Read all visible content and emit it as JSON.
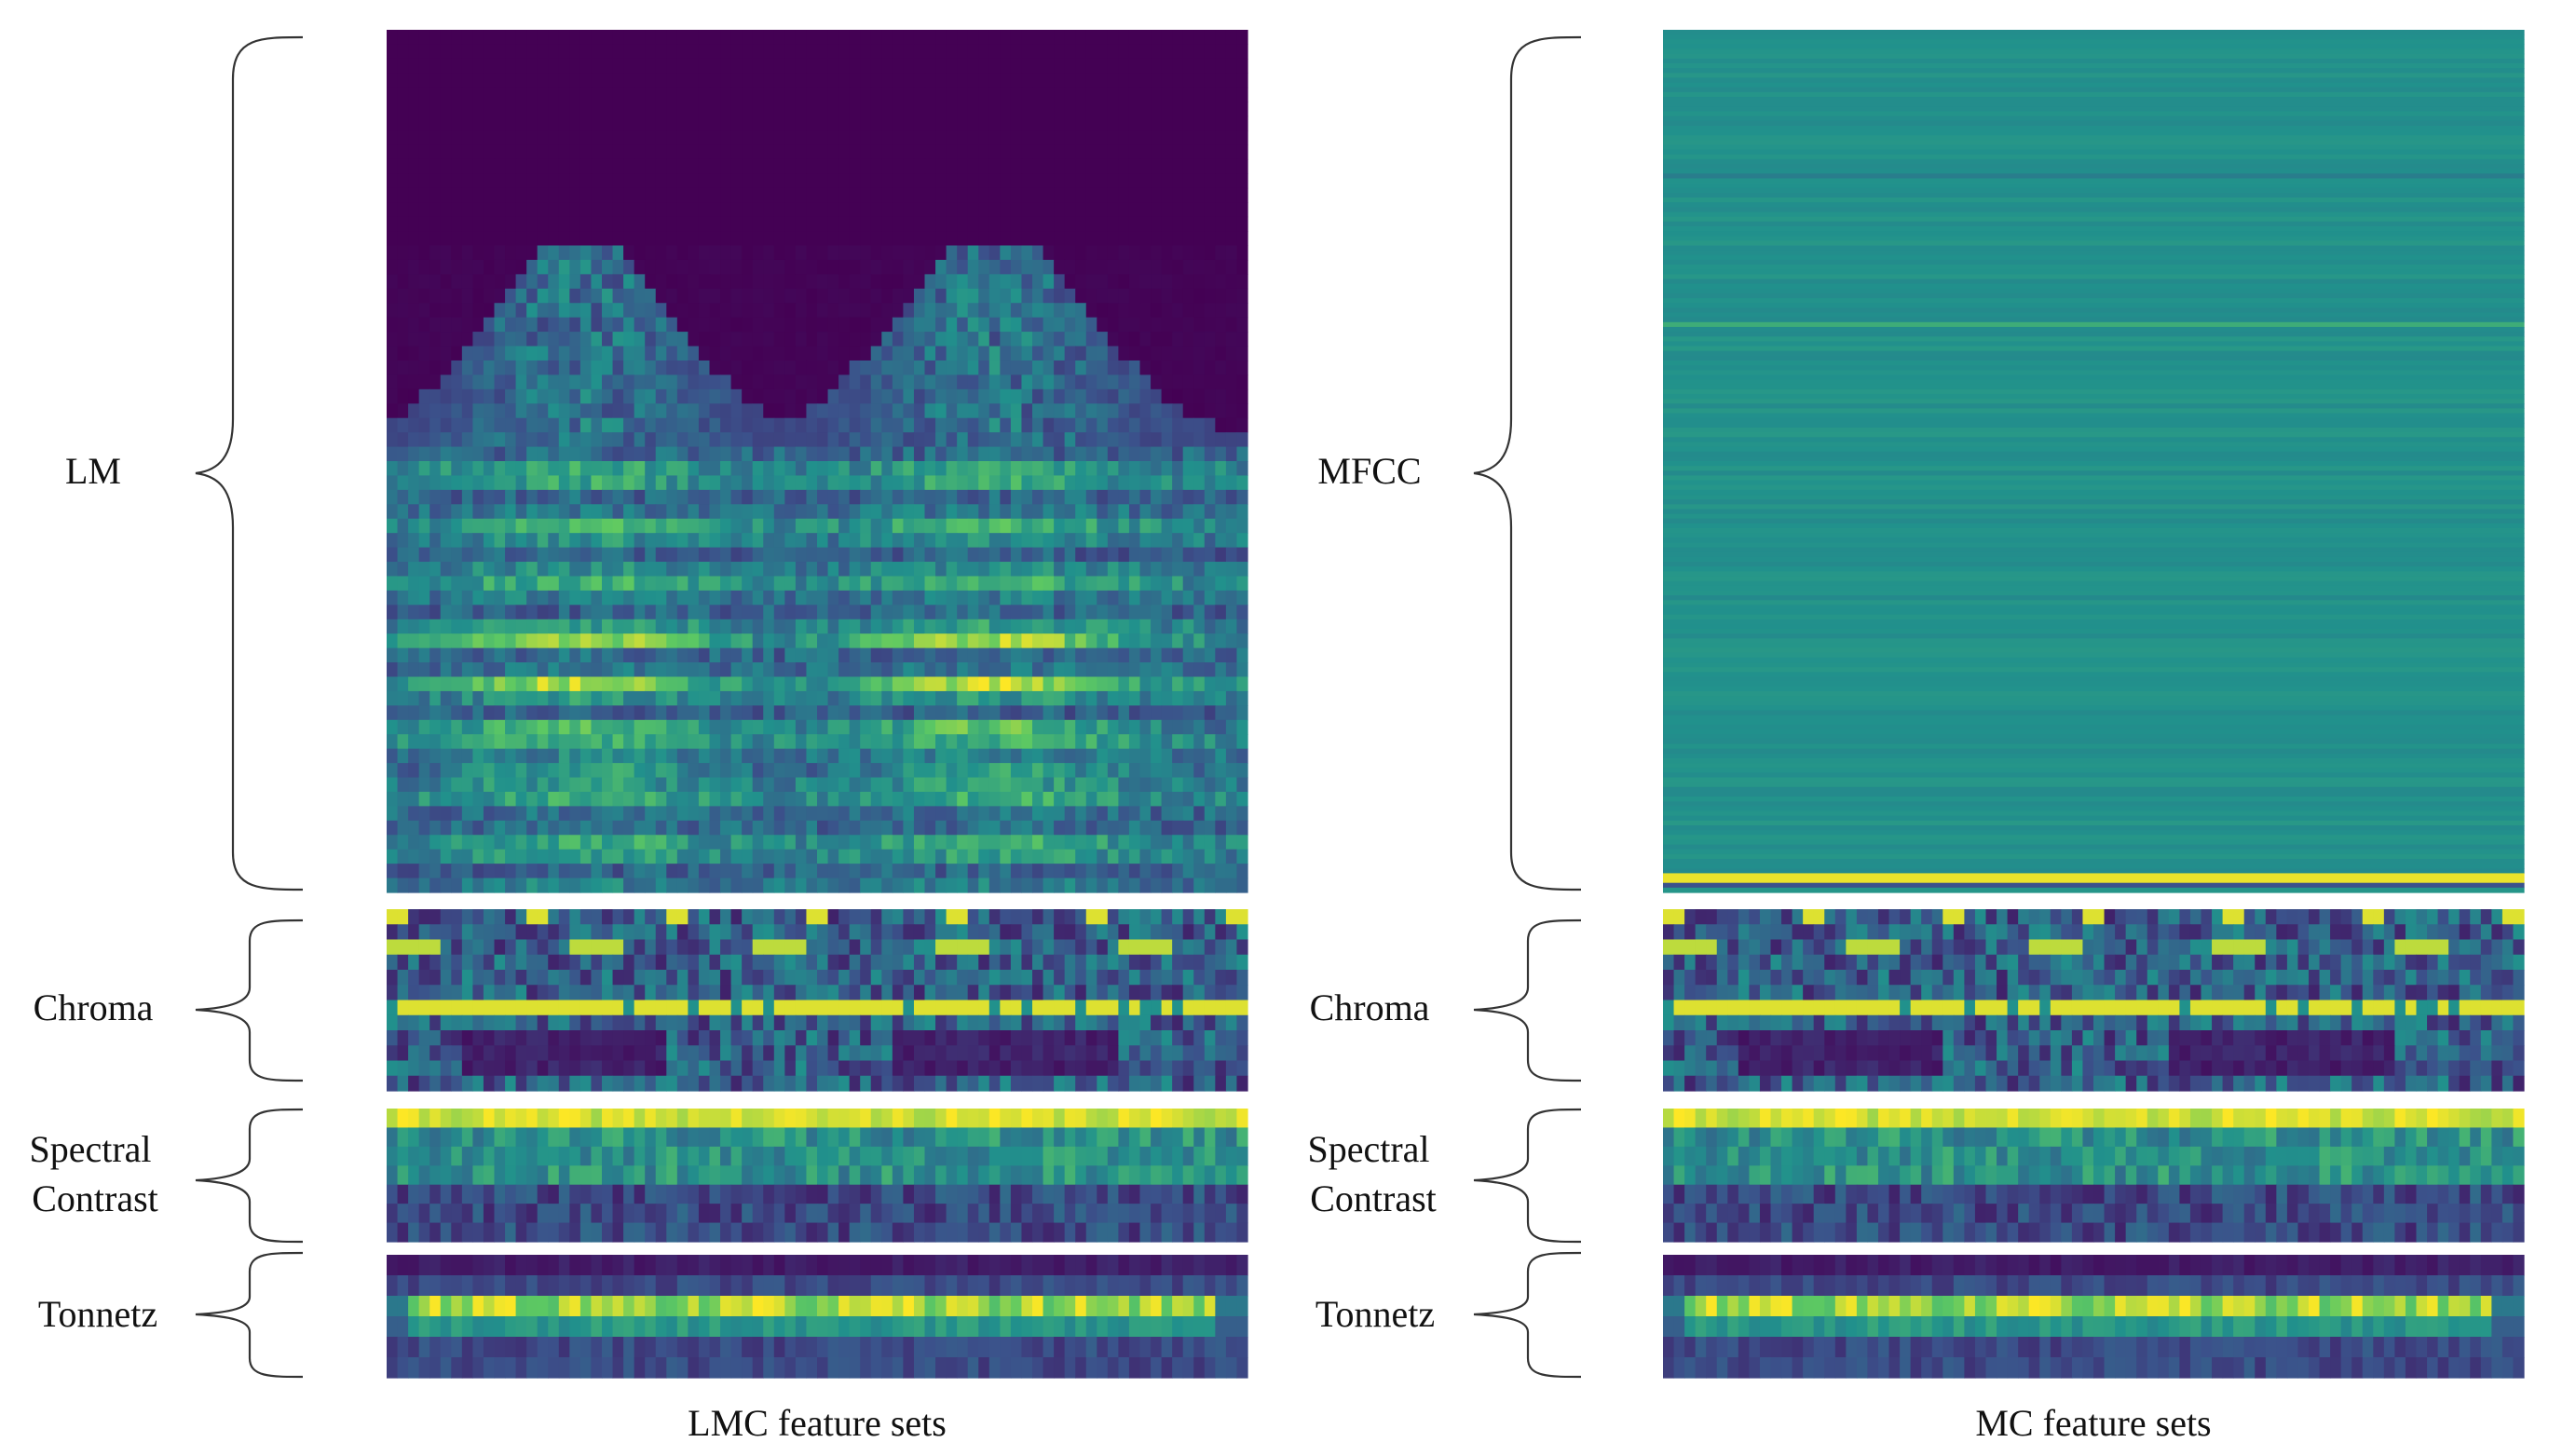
{
  "figure": {
    "columns": [
      {
        "caption": "LMC feature sets",
        "panels": [
          {
            "label_lines": [
              "LM"
            ],
            "kind": "log-mel"
          },
          {
            "label_lines": [
              "Chroma"
            ],
            "kind": "chroma"
          },
          {
            "label_lines": [
              "Spectral",
              "Contrast"
            ],
            "kind": "contrast"
          },
          {
            "label_lines": [
              "Tonnetz"
            ],
            "kind": "tonnetz"
          }
        ]
      },
      {
        "caption": "MC feature sets",
        "panels": [
          {
            "label_lines": [
              "MFCC"
            ],
            "kind": "mfcc"
          },
          {
            "label_lines": [
              "Chroma"
            ],
            "kind": "chroma"
          },
          {
            "label_lines": [
              "Spectral",
              "Contrast"
            ],
            "kind": "contrast"
          },
          {
            "label_lines": [
              "Tonnetz"
            ],
            "kind": "tonnetz"
          }
        ]
      }
    ],
    "colormap": [
      "#440154",
      "#3b528b",
      "#21918c",
      "#5ec962",
      "#fde725"
    ]
  }
}
